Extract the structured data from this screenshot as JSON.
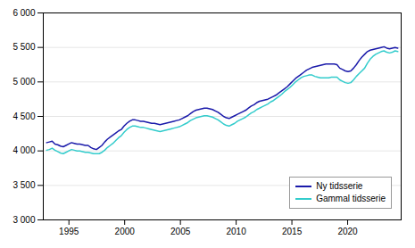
{
  "chart_data": {
    "type": "line",
    "x": [
      1993,
      1993.248,
      1993.4961,
      1993.7441,
      1993.9921,
      1994.2402,
      1994.4882,
      1994.7362,
      1994.9843,
      1995.2323,
      1995.4803,
      1995.7283,
      1995.9764,
      1996.2244,
      1996.4724,
      1996.7205,
      1996.9685,
      1997.2165,
      1997.4646,
      1997.7126,
      1997.9606,
      1998.2087,
      1998.4567,
      1998.7047,
      1998.9528,
      1999.2008,
      1999.4488,
      1999.6969,
      1999.9449,
      2000.1929,
      2000.4409,
      2000.689,
      2000.937,
      2001.185,
      2001.4331,
      2001.6811,
      2001.9291,
      2002.1772,
      2002.4252,
      2002.6732,
      2002.9213,
      2003.1693,
      2003.4173,
      2003.6654,
      2003.9134,
      2004.1614,
      2004.4094,
      2004.6575,
      2004.9055,
      2005.1535,
      2005.4016,
      2005.6496,
      2005.8976,
      2006.1457,
      2006.3937,
      2006.6417,
      2006.8898,
      2007.1378,
      2007.3858,
      2007.6339,
      2007.8819,
      2008.1299,
      2008.378,
      2008.626,
      2008.874,
      2009.122,
      2009.3701,
      2009.6181,
      2009.8661,
      2010.1142,
      2010.3622,
      2010.6102,
      2010.8583,
      2011.1063,
      2011.3543,
      2011.6024,
      2011.8504,
      2012.0984,
      2012.3465,
      2012.5945,
      2012.8425,
      2013.0906,
      2013.3386,
      2013.5866,
      2013.8346,
      2014.0827,
      2014.3307,
      2014.5787,
      2014.8268,
      2015.0748,
      2015.3228,
      2015.5709,
      2015.8189,
      2016.0669,
      2016.315,
      2016.563,
      2016.811,
      2017.0591,
      2017.3071,
      2017.5551,
      2017.8031,
      2018.0512,
      2018.2992,
      2018.5472,
      2018.7953,
      2019.0433,
      2019.2913,
      2019.5394,
      2019.7874,
      2020.0354,
      2020.2835,
      2020.5315,
      2020.7795,
      2021.0276,
      2021.2756,
      2021.5236,
      2021.7717,
      2022.0197,
      2022.2677,
      2022.5157,
      2022.7638,
      2023.0118,
      2023.2598,
      2023.5079,
      2023.7559,
      2024.0039,
      2024.252,
      2024.5
    ],
    "series": [
      {
        "name": "Ny tidsserie",
        "color": "#1a1aaa",
        "values": [
          4120,
          4130,
          4140,
          4100,
          4090,
          4070,
          4060,
          4080,
          4100,
          4120,
          4110,
          4100,
          4100,
          4090,
          4080,
          4080,
          4050,
          4030,
          4020,
          4050,
          4080,
          4130,
          4170,
          4200,
          4230,
          4260,
          4290,
          4310,
          4360,
          4400,
          4430,
          4450,
          4450,
          4440,
          4430,
          4430,
          4420,
          4410,
          4400,
          4400,
          4390,
          4380,
          4390,
          4400,
          4410,
          4420,
          4430,
          4440,
          4450,
          4470,
          4490,
          4510,
          4540,
          4570,
          4590,
          4600,
          4610,
          4620,
          4620,
          4610,
          4600,
          4580,
          4560,
          4530,
          4500,
          4480,
          4470,
          4490,
          4510,
          4530,
          4550,
          4570,
          4590,
          4620,
          4650,
          4670,
          4700,
          4720,
          4730,
          4740,
          4750,
          4770,
          4790,
          4810,
          4840,
          4870,
          4900,
          4930,
          4970,
          5010,
          5050,
          5080,
          5110,
          5140,
          5170,
          5190,
          5210,
          5220,
          5230,
          5240,
          5250,
          5260,
          5260,
          5260,
          5260,
          5250,
          5200,
          5180,
          5160,
          5150,
          5160,
          5200,
          5250,
          5310,
          5360,
          5400,
          5440,
          5460,
          5470,
          5480,
          5490,
          5500,
          5510,
          5490,
          5480,
          5490,
          5500,
          5490
        ]
      },
      {
        "name": "Gammal tidsserie",
        "color": "#33cccc",
        "values": [
          4010,
          4020,
          4040,
          4010,
          3990,
          3970,
          3960,
          3980,
          4000,
          4020,
          4010,
          4000,
          4000,
          3990,
          3980,
          3980,
          3970,
          3960,
          3960,
          3960,
          3980,
          4010,
          4050,
          4080,
          4110,
          4150,
          4190,
          4220,
          4270,
          4310,
          4340,
          4360,
          4360,
          4350,
          4340,
          4340,
          4330,
          4320,
          4310,
          4300,
          4290,
          4280,
          4290,
          4300,
          4310,
          4320,
          4330,
          4340,
          4350,
          4370,
          4390,
          4410,
          4440,
          4460,
          4480,
          4490,
          4500,
          4510,
          4510,
          4500,
          4490,
          4470,
          4450,
          4420,
          4390,
          4370,
          4360,
          4380,
          4400,
          4430,
          4450,
          4470,
          4490,
          4520,
          4550,
          4570,
          4600,
          4620,
          4640,
          4660,
          4680,
          4710,
          4730,
          4760,
          4790,
          4820,
          4860,
          4890,
          4920,
          4960,
          5000,
          5030,
          5060,
          5080,
          5090,
          5100,
          5100,
          5080,
          5070,
          5060,
          5060,
          5060,
          5060,
          5070,
          5070,
          5070,
          5030,
          5010,
          4990,
          4980,
          4990,
          5030,
          5080,
          5120,
          5160,
          5200,
          5270,
          5330,
          5370,
          5400,
          5420,
          5440,
          5450,
          5430,
          5420,
          5430,
          5450,
          5440
        ]
      }
    ],
    "xlim": [
      1992.7,
      2024.8
    ],
    "xticks": [
      1995,
      2000,
      2005,
      2010,
      2015,
      2020
    ],
    "ylim": [
      3000,
      6000
    ],
    "yticks": [
      {
        "value": 3000,
        "label": "3 000"
      },
      {
        "value": 3500,
        "label": "3 500"
      },
      {
        "value": 4000,
        "label": "4 000"
      },
      {
        "value": 4500,
        "label": "4 500"
      },
      {
        "value": 5000,
        "label": "5 000"
      },
      {
        "value": 5500,
        "label": "5 500"
      },
      {
        "value": 6000,
        "label": "6 000"
      }
    ],
    "grid": true,
    "legend": "lower right"
  }
}
